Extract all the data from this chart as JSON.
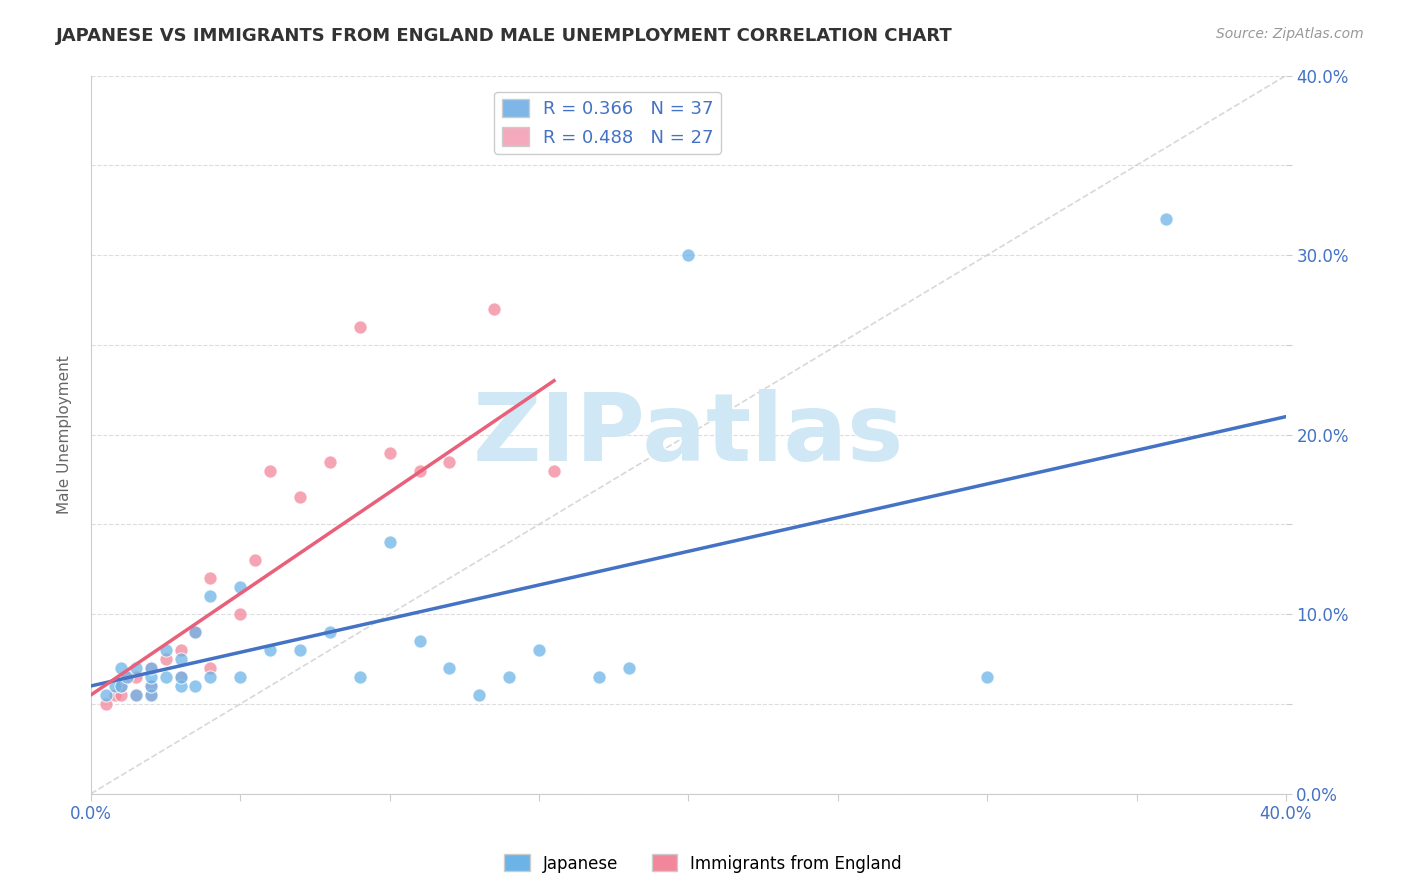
{
  "title": "JAPANESE VS IMMIGRANTS FROM ENGLAND MALE UNEMPLOYMENT CORRELATION CHART",
  "source": "Source: ZipAtlas.com",
  "xlabel": "",
  "ylabel": "Male Unemployment",
  "xlim": [
    0.0,
    0.4
  ],
  "ylim": [
    0.0,
    0.4
  ],
  "xticks": [
    0.0,
    0.05,
    0.1,
    0.15,
    0.2,
    0.25,
    0.3,
    0.35,
    0.4
  ],
  "yticks": [
    0.0,
    0.05,
    0.1,
    0.15,
    0.2,
    0.25,
    0.3,
    0.35,
    0.4
  ],
  "ytick_labels_right": [
    "0.0%",
    "",
    "10.0%",
    "",
    "20.0%",
    "",
    "30.0%",
    "",
    "40.0%"
  ],
  "xtick_labels_show": [
    "0.0%",
    "40.0%"
  ],
  "legend_entries": [
    {
      "label": "R = 0.366   N = 37",
      "color": "#7EB6E8"
    },
    {
      "label": "R = 0.488   N = 27",
      "color": "#F4AABC"
    }
  ],
  "watermark": "ZIPatlas",
  "watermark_color": "#D0E8F5",
  "background_color": "#FFFFFF",
  "japanese_color": "#6CB4E8",
  "england_color": "#F2869A",
  "japanese_line_color": "#4472C4",
  "england_line_color": "#E8607A",
  "ref_line_color": "#C8C8C8",
  "japanese_scatter_x": [
    0.005,
    0.008,
    0.01,
    0.01,
    0.012,
    0.015,
    0.015,
    0.02,
    0.02,
    0.02,
    0.02,
    0.025,
    0.025,
    0.03,
    0.03,
    0.03,
    0.035,
    0.035,
    0.04,
    0.04,
    0.05,
    0.05,
    0.06,
    0.07,
    0.08,
    0.09,
    0.1,
    0.11,
    0.12,
    0.13,
    0.14,
    0.15,
    0.17,
    0.18,
    0.2,
    0.3,
    0.36
  ],
  "japanese_scatter_y": [
    0.055,
    0.06,
    0.06,
    0.07,
    0.065,
    0.055,
    0.07,
    0.055,
    0.06,
    0.065,
    0.07,
    0.065,
    0.08,
    0.06,
    0.065,
    0.075,
    0.06,
    0.09,
    0.065,
    0.11,
    0.065,
    0.115,
    0.08,
    0.08,
    0.09,
    0.065,
    0.14,
    0.085,
    0.07,
    0.055,
    0.065,
    0.08,
    0.065,
    0.07,
    0.3,
    0.065,
    0.32
  ],
  "england_scatter_x": [
    0.005,
    0.008,
    0.01,
    0.01,
    0.012,
    0.015,
    0.015,
    0.02,
    0.02,
    0.02,
    0.025,
    0.03,
    0.03,
    0.035,
    0.04,
    0.04,
    0.05,
    0.055,
    0.06,
    0.07,
    0.08,
    0.09,
    0.1,
    0.11,
    0.12,
    0.135,
    0.155
  ],
  "england_scatter_y": [
    0.05,
    0.055,
    0.055,
    0.06,
    0.065,
    0.055,
    0.065,
    0.055,
    0.06,
    0.07,
    0.075,
    0.065,
    0.08,
    0.09,
    0.07,
    0.12,
    0.1,
    0.13,
    0.18,
    0.165,
    0.185,
    0.26,
    0.19,
    0.18,
    0.185,
    0.27,
    0.18
  ],
  "japanese_trend_x": [
    0.0,
    0.4
  ],
  "japanese_trend_y": [
    0.06,
    0.21
  ],
  "england_trend_x": [
    0.0,
    0.155
  ],
  "england_trend_y": [
    0.055,
    0.23
  ],
  "ref_line": {
    "x0": 0.0,
    "y0": 0.0,
    "x1": 0.4,
    "y1": 0.4
  },
  "title_fontsize": 13,
  "axis_label_color": "#4472C4",
  "ylabel_color": "#666666",
  "grid_color": "#DDDDDD",
  "legend_text_color": "#4472C4",
  "bottom_legend_items": [
    {
      "label": "Japanese",
      "color": "#6CB4E8"
    },
    {
      "label": "Immigrants from England",
      "color": "#F2869A"
    }
  ]
}
